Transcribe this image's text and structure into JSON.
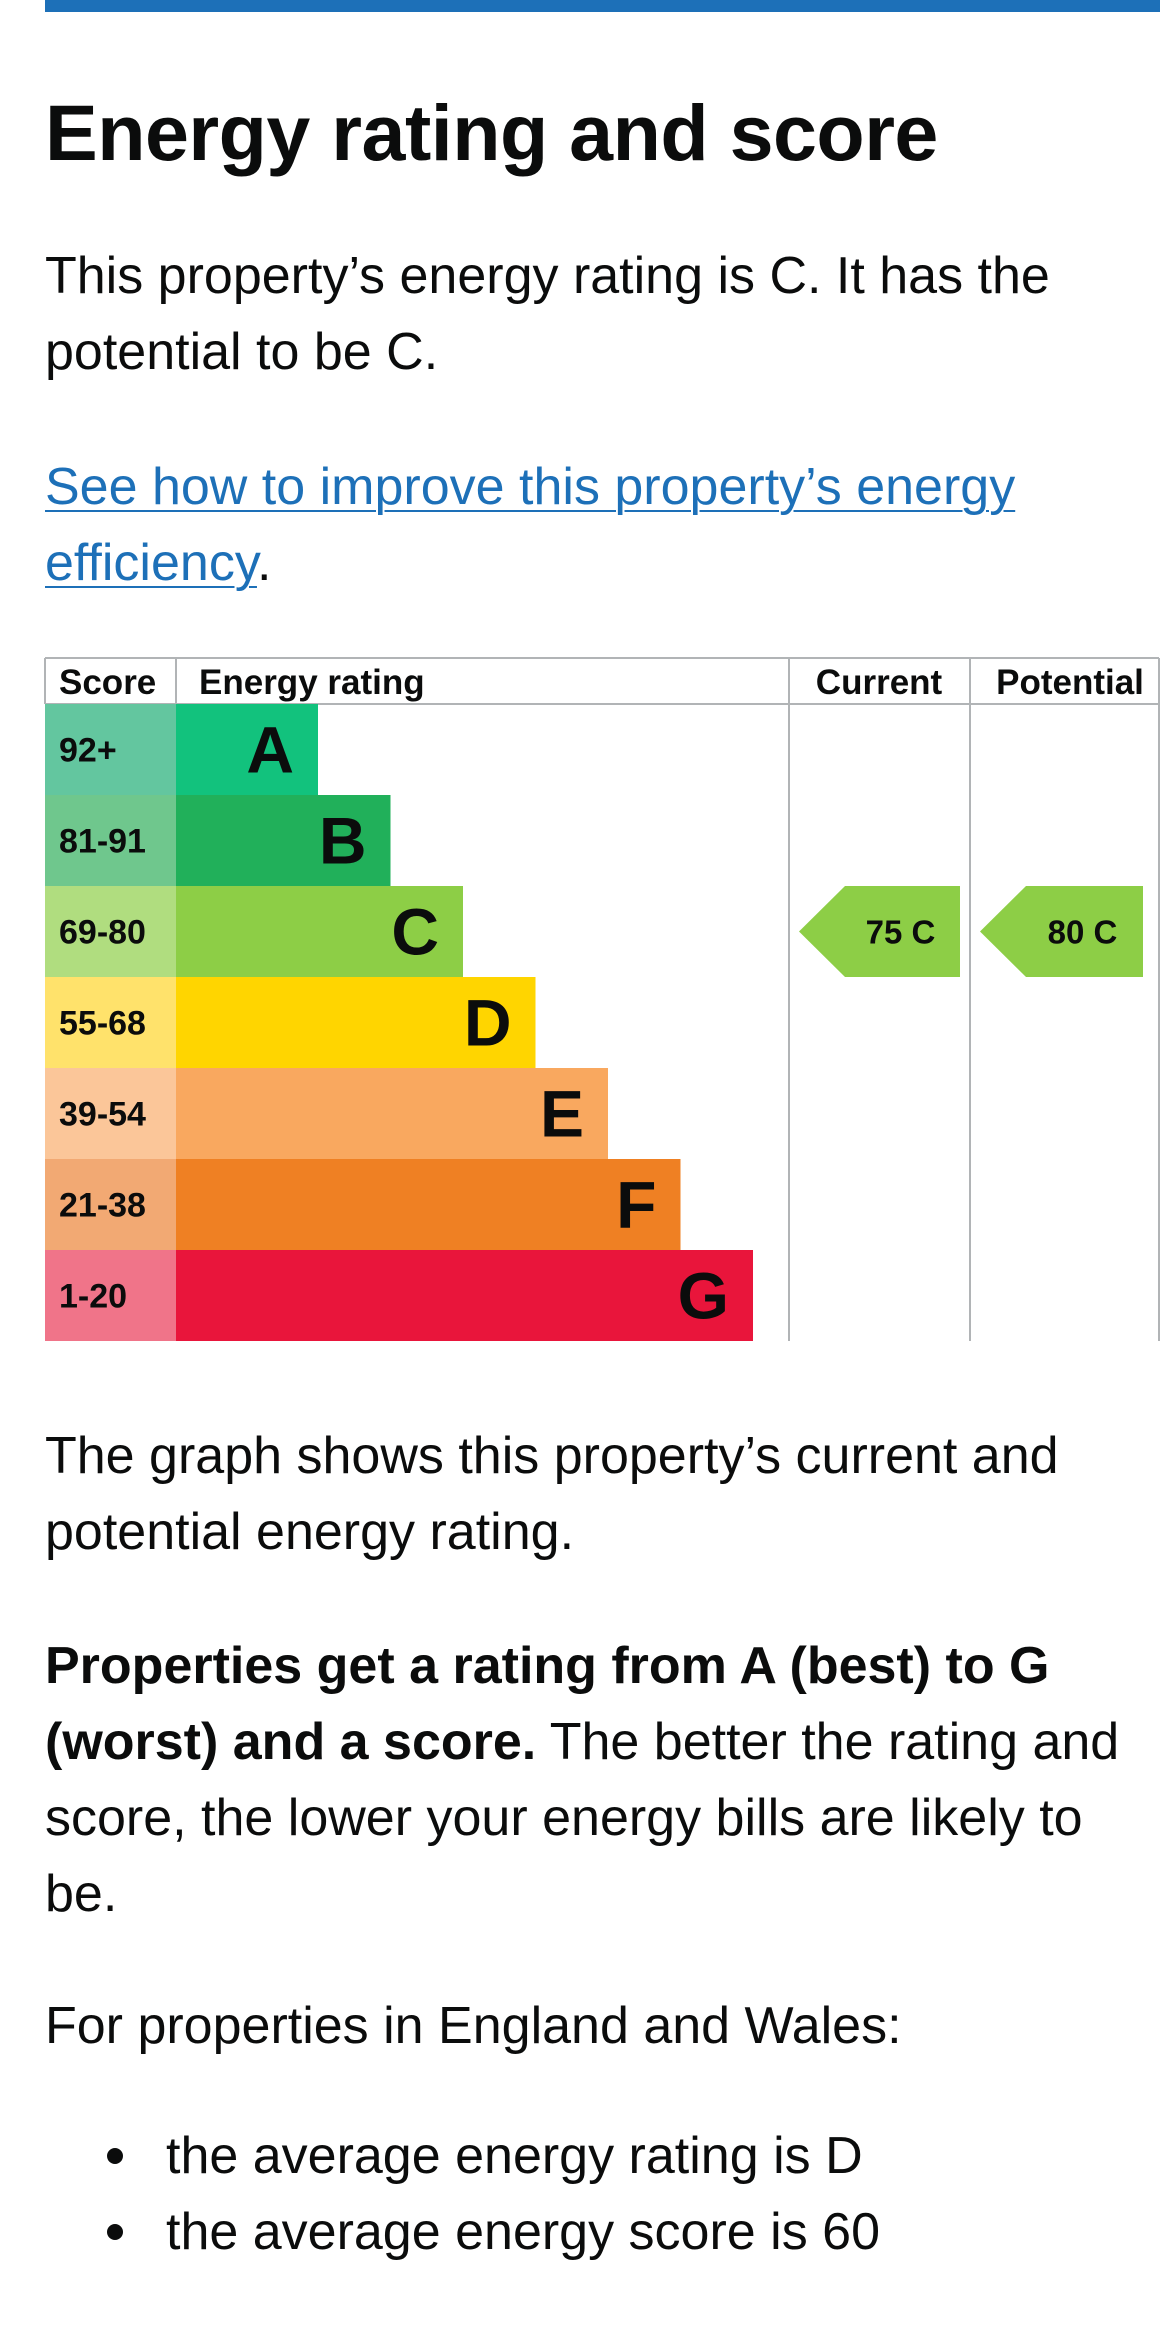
{
  "page": {
    "title": "Energy rating and score",
    "intro": "This property’s energy rating is C. It has the potential to be C.",
    "improve_link": "See how to improve this property’s energy efficiency",
    "improve_link_suffix": ".",
    "graph_description": "The graph shows this property’s current and potential energy rating.",
    "ratings_bold": "Properties get a rating from A (best) to G (worst) and a score.",
    "ratings_rest": " The better the rating and score, the lower your energy bills are likely to be.",
    "region_intro": "For properties in England and Wales:",
    "averages": [
      "the average energy rating is D",
      "the average energy score is 60"
    ]
  },
  "chart_data": {
    "type": "bar",
    "headers": {
      "score": "Score",
      "rating": "Energy rating",
      "current": "Current",
      "potential": "Potential"
    },
    "bands": [
      {
        "range": "92+",
        "letter": "A",
        "color": "#12c27d",
        "score_color": "#63c69f"
      },
      {
        "range": "81-91",
        "letter": "B",
        "color": "#21b05a",
        "score_color": "#6fc78d"
      },
      {
        "range": "69-80",
        "letter": "C",
        "color": "#8dce46",
        "score_color": "#b0dd7f"
      },
      {
        "range": "55-68",
        "letter": "D",
        "color": "#ffd500",
        "score_color": "#ffe26b"
      },
      {
        "range": "39-54",
        "letter": "E",
        "color": "#f9a85f",
        "score_color": "#fbc699"
      },
      {
        "range": "21-38",
        "letter": "F",
        "color": "#ef8023",
        "score_color": "#f2a973"
      },
      {
        "range": "1-20",
        "letter": "G",
        "color": "#e9153b",
        "score_color": "#f07489"
      }
    ],
    "current": {
      "score": 75,
      "letter": "C",
      "label": "75  C",
      "color": "#8dce46"
    },
    "potential": {
      "score": 80,
      "letter": "C",
      "label": "80  C",
      "color": "#8dce46"
    }
  }
}
